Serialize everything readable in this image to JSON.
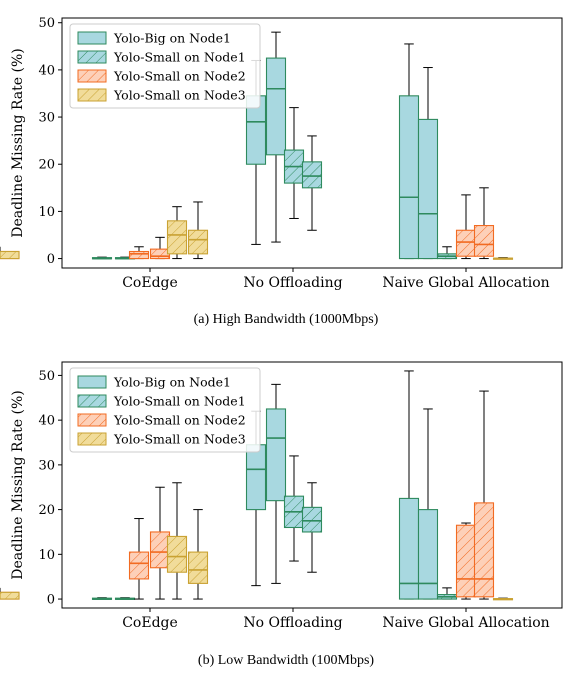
{
  "colors": {
    "teal_fill": "#a8d8e0",
    "teal_edge": "#2e8a5e",
    "orange_fill": "#fdd0b8",
    "orange_edge": "#f26b22",
    "gold_fill": "#f1dc9a",
    "gold_edge": "#c9a233"
  },
  "chart_data": [
    {
      "type": "box",
      "caption": "(a)  High Bandwidth (1000Mbps)",
      "ylabel": "Deadline Missing Rate (%)",
      "ylim": [
        -2,
        51
      ],
      "yticks": [
        "0",
        "10",
        "20",
        "30",
        "40",
        "50"
      ],
      "categories": [
        "CoEdge",
        "No Offloading",
        "Naive Global Allocation"
      ],
      "legend_position": "top-left",
      "series": [
        {
          "name": "Yolo-Big on Node1",
          "style": "teal",
          "boxes": [
            [
              {
                "min": 0,
                "q1": 0,
                "median": 0,
                "q3": 0.2,
                "max": 0.3
              }
            ],
            [
              {
                "min": 3,
                "q1": 20,
                "median": 29,
                "q3": 34.5,
                "max": 42
              },
              {
                "min": 3.5,
                "q1": 22,
                "median": 36,
                "q3": 42.5,
                "max": 48
              }
            ],
            [
              {
                "min": 0,
                "q1": 0,
                "median": 13,
                "q3": 34.5,
                "max": 45.5
              },
              {
                "min": 0,
                "q1": 0,
                "median": 9.5,
                "q3": 29.5,
                "max": 40.5
              }
            ]
          ]
        },
        {
          "name": "Yolo-Small on Node1",
          "style": "teal-hatch",
          "boxes": [
            [
              {
                "min": 0,
                "q1": 0,
                "median": 0,
                "q3": 0.2,
                "max": 0.3
              }
            ],
            [
              {
                "min": 8.5,
                "q1": 16,
                "median": 19.5,
                "q3": 23,
                "max": 32
              },
              {
                "min": 6,
                "q1": 15,
                "median": 17.5,
                "q3": 20.5,
                "max": 26
              }
            ],
            [
              {
                "min": 0,
                "q1": 0,
                "median": 0.5,
                "q3": 1,
                "max": 2.5
              }
            ]
          ]
        },
        {
          "name": "Yolo-Small on Node2",
          "style": "orange-hatch",
          "boxes": [
            [
              {
                "min": 0,
                "q1": 0,
                "median": 1,
                "q3": 1.5,
                "max": 2.5
              },
              {
                "min": 0,
                "q1": 0,
                "median": 0.5,
                "q3": 2,
                "max": 4.5
              }
            ],
            [
              {
                "min": 0,
                "q1": 0,
                "median": 0.5,
                "q3": 1.5,
                "max": 2
              }
            ],
            [
              {
                "min": 0,
                "q1": 0.5,
                "median": 3.5,
                "q3": 6,
                "max": 13.5
              },
              {
                "min": 0,
                "q1": 0.5,
                "median": 3,
                "q3": 7,
                "max": 15
              }
            ]
          ]
        },
        {
          "name": "Yolo-Small on Node3",
          "style": "gold-hatch",
          "boxes": [
            [
              {
                "min": 0,
                "q1": 1,
                "median": 5,
                "q3": 8,
                "max": 11
              },
              {
                "min": 0,
                "q1": 1,
                "median": 4,
                "q3": 6,
                "max": 12
              }
            ],
            [
              {
                "min": 0,
                "q1": 0,
                "median": 0.5,
                "q3": 1.5,
                "max": 2.5
              }
            ],
            [
              {
                "min": 0,
                "q1": 0,
                "median": 0,
                "q3": 0.1,
                "max": 0.2
              }
            ]
          ]
        }
      ]
    },
    {
      "type": "box",
      "caption": "(b)  Low Bandwidth (100Mbps)",
      "ylabel": "Deadline Missing Rate (%)",
      "ylim": [
        -2,
        53
      ],
      "yticks": [
        "0",
        "10",
        "20",
        "30",
        "40",
        "50"
      ],
      "categories": [
        "CoEdge",
        "No Offloading",
        "Naive Global Allocation"
      ],
      "legend_position": "top-left",
      "series": [
        {
          "name": "Yolo-Big on Node1",
          "style": "teal",
          "boxes": [
            [
              {
                "min": 0,
                "q1": 0,
                "median": 0,
                "q3": 0.2,
                "max": 0.3
              }
            ],
            [
              {
                "min": 3,
                "q1": 20,
                "median": 29,
                "q3": 34.5,
                "max": 42
              },
              {
                "min": 3.5,
                "q1": 22,
                "median": 36,
                "q3": 42.5,
                "max": 48
              }
            ],
            [
              {
                "min": 0,
                "q1": 0,
                "median": 3.5,
                "q3": 22.5,
                "max": 51
              },
              {
                "min": 0,
                "q1": 0,
                "median": 3.5,
                "q3": 20,
                "max": 42.5
              }
            ]
          ]
        },
        {
          "name": "Yolo-Small on Node1",
          "style": "teal-hatch",
          "boxes": [
            [
              {
                "min": 0,
                "q1": 0,
                "median": 0,
                "q3": 0.2,
                "max": 0.3
              }
            ],
            [
              {
                "min": 8.5,
                "q1": 16,
                "median": 19.5,
                "q3": 23,
                "max": 32
              },
              {
                "min": 6,
                "q1": 15,
                "median": 17.5,
                "q3": 20.5,
                "max": 26
              }
            ],
            [
              {
                "min": 0,
                "q1": 0,
                "median": 0.5,
                "q3": 1,
                "max": 2.5
              }
            ]
          ]
        },
        {
          "name": "Yolo-Small on Node2",
          "style": "orange-hatch",
          "boxes": [
            [
              {
                "min": 0,
                "q1": 4.5,
                "median": 8,
                "q3": 10.5,
                "max": 18
              },
              {
                "min": 0,
                "q1": 7,
                "median": 10.5,
                "q3": 15,
                "max": 25
              }
            ],
            [
              {
                "min": 0,
                "q1": 0,
                "median": 0.5,
                "q3": 1.5,
                "max": 2
              }
            ],
            [
              {
                "min": 0,
                "q1": 0.5,
                "median": 4.5,
                "q3": 16.5,
                "max": 17
              },
              {
                "min": 0,
                "q1": 0.5,
                "median": 4.5,
                "q3": 21.5,
                "max": 46.5
              }
            ]
          ]
        },
        {
          "name": "Yolo-Small on Node3",
          "style": "gold-hatch",
          "boxes": [
            [
              {
                "min": 0,
                "q1": 6,
                "median": 9.5,
                "q3": 14,
                "max": 26
              },
              {
                "min": 0,
                "q1": 3.5,
                "median": 6.5,
                "q3": 10.5,
                "max": 20
              }
            ],
            [
              {
                "min": 0,
                "q1": 0,
                "median": 0.5,
                "q3": 1.5,
                "max": 2.5
              }
            ],
            [
              {
                "min": 0,
                "q1": 0,
                "median": 0,
                "q3": 0.1,
                "max": 0.2
              }
            ]
          ]
        }
      ]
    }
  ]
}
